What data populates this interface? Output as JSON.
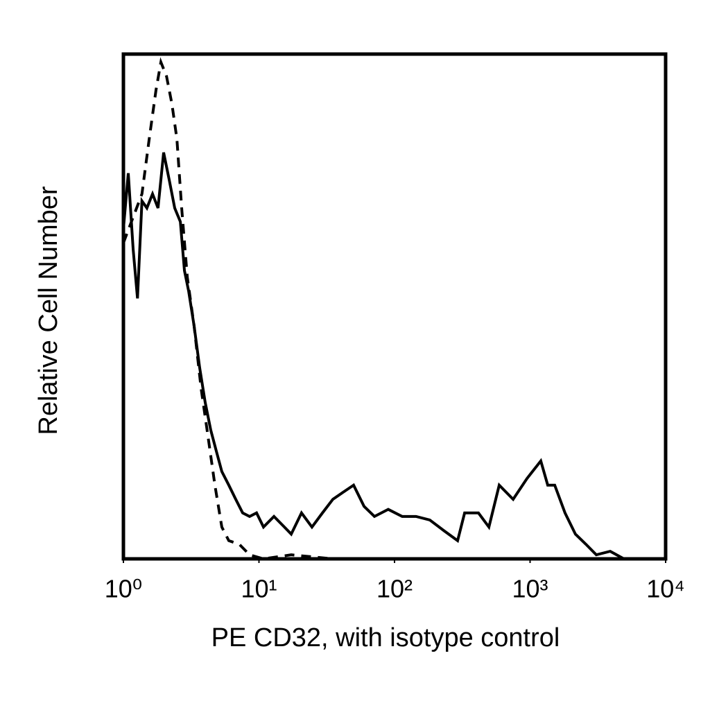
{
  "chart_data": {
    "type": "line",
    "xlabel": "PE CD32, with isotype control",
    "ylabel": "Relative Cell Number",
    "xscale": "log",
    "xlim": [
      1,
      10000
    ],
    "xticks": [
      {
        "value": 1,
        "label": "10⁰"
      },
      {
        "value": 10,
        "label": "10¹"
      },
      {
        "value": 100,
        "label": "10²"
      },
      {
        "value": 1000,
        "label": "10³"
      },
      {
        "value": 10000,
        "label": "10⁴"
      }
    ],
    "ylim": [
      0,
      100
    ],
    "grid": false,
    "series": [
      {
        "color": "#000000",
        "linestyle": "solid",
        "x": [
          1,
          1.086,
          1.18,
          1.27,
          1.37,
          1.49,
          1.64,
          1.8,
          1.98,
          2.18,
          2.39,
          2.63,
          2.82,
          3.03,
          3.32,
          3.65,
          4.01,
          4.41,
          4.84,
          5.32,
          5.99,
          6.74,
          7.58,
          8.53,
          9.6,
          10.8,
          12.9,
          15.4,
          17.3,
          20.6,
          24.6,
          29.4,
          35.1,
          41.8,
          49.9,
          59.6,
          71.1,
          89.9,
          114,
          144,
          182,
          231,
          292,
          329,
          416,
          497,
          592,
          750,
          948,
          1200,
          1350,
          1520,
          1810,
          2160,
          2580,
          3080,
          3900,
          4930,
          10000
        ],
        "values": [
          65.4,
          76.4,
          61.3,
          51.6,
          70.9,
          69.5,
          72.3,
          69.5,
          80.5,
          75.0,
          69.5,
          66.8,
          57.1,
          53.0,
          46.2,
          37.9,
          31.0,
          25.5,
          21.4,
          17.3,
          14.6,
          11.8,
          9.1,
          8.4,
          9.1,
          6.3,
          8.4,
          6.3,
          4.9,
          9.1,
          6.3,
          9.1,
          11.8,
          13.2,
          14.6,
          10.4,
          8.4,
          9.8,
          8.4,
          8.4,
          7.7,
          5.6,
          3.6,
          9.1,
          9.1,
          6.3,
          14.6,
          11.8,
          15.9,
          19.4,
          14.6,
          14.6,
          9.1,
          4.9,
          2.9,
          0.8,
          1.5,
          0,
          0
        ]
      },
      {
        "color": "#000000",
        "linestyle": "dashed",
        "x": [
          1,
          1.37,
          1.55,
          1.74,
          1.89,
          2.08,
          2.28,
          2.48,
          2.69,
          2.96,
          3.32,
          3.74,
          4.21,
          4.73,
          5.32,
          5.99,
          7.15,
          8.53,
          10.8,
          17.3,
          35.1,
          144,
          1520,
          10000
        ],
        "values": [
          62.6,
          72.3,
          83.2,
          92.9,
          98.4,
          95.6,
          90.1,
          83.2,
          69.5,
          55.8,
          46.2,
          33.8,
          24.2,
          14.6,
          6.3,
          3.6,
          2.9,
          0.8,
          0,
          0.8,
          0,
          0,
          0,
          0
        ]
      }
    ]
  }
}
